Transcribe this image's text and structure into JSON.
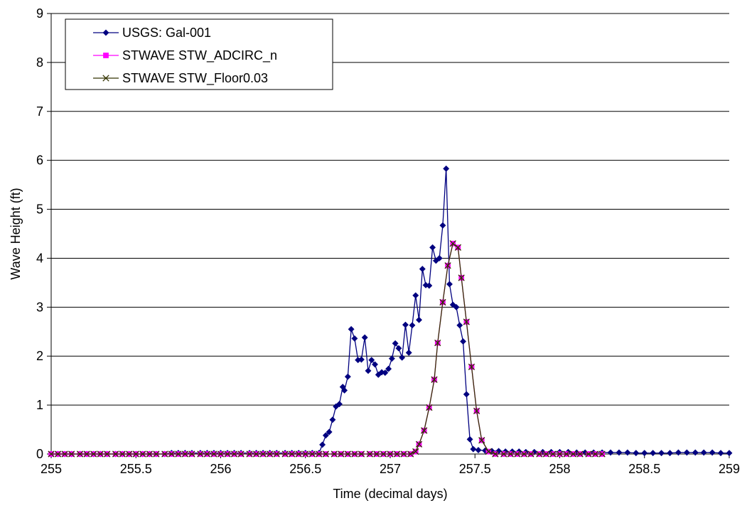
{
  "chart_data": {
    "type": "line",
    "title": "",
    "xlabel": "Time (decimal days)",
    "ylabel": "Wave Height (ft)",
    "xlim": [
      255,
      259
    ],
    "ylim": [
      0,
      9
    ],
    "x_ticks": [
      "255",
      "255.5",
      "256",
      "256.5",
      "257",
      "257.5",
      "258",
      "258.5",
      "259"
    ],
    "y_ticks": [
      "0",
      "1",
      "2",
      "3",
      "4",
      "5",
      "6",
      "7",
      "8",
      "9"
    ],
    "grid": "horizontal major gridlines",
    "legend_position": "top-left",
    "series": [
      {
        "name": "USGS: Gal-001",
        "color": "#000080",
        "marker": "diamond",
        "x": [
          255.0,
          255.04,
          255.08,
          255.12,
          255.17,
          255.21,
          255.25,
          255.29,
          255.33,
          255.38,
          255.42,
          255.46,
          255.5,
          255.54,
          255.58,
          255.62,
          255.67,
          255.71,
          255.75,
          255.79,
          255.83,
          255.88,
          255.92,
          255.96,
          256.0,
          256.04,
          256.08,
          256.12,
          256.17,
          256.21,
          256.25,
          256.29,
          256.33,
          256.38,
          256.42,
          256.46,
          256.5,
          256.54,
          256.58,
          256.6,
          256.62,
          256.64,
          256.66,
          256.68,
          256.7,
          256.72,
          256.73,
          256.75,
          256.77,
          256.79,
          256.81,
          256.83,
          256.85,
          256.87,
          256.89,
          256.91,
          256.93,
          256.95,
          256.97,
          256.99,
          257.01,
          257.03,
          257.05,
          257.07,
          257.09,
          257.11,
          257.13,
          257.15,
          257.17,
          257.19,
          257.21,
          257.23,
          257.25,
          257.27,
          257.29,
          257.31,
          257.33,
          257.35,
          257.37,
          257.39,
          257.41,
          257.43,
          257.45,
          257.47,
          257.49,
          257.52,
          257.56,
          257.6,
          257.64,
          257.68,
          257.72,
          257.76,
          257.8,
          257.85,
          257.9,
          257.95,
          258.0,
          258.05,
          258.1,
          258.15,
          258.2,
          258.25,
          258.3,
          258.35,
          258.4,
          258.45,
          258.5,
          258.55,
          258.6,
          258.65,
          258.7,
          258.75,
          258.8,
          258.85,
          258.9,
          258.95,
          259.0
        ],
        "y": [
          0.0,
          0.0,
          0.0,
          0.0,
          0.0,
          0.0,
          0.0,
          0.0,
          0.0,
          0.0,
          0.0,
          0.0,
          0.0,
          0.0,
          0.0,
          0.0,
          0.0,
          0.02,
          0.02,
          0.02,
          0.02,
          0.02,
          0.02,
          0.02,
          0.02,
          0.02,
          0.02,
          0.02,
          0.02,
          0.02,
          0.02,
          0.02,
          0.02,
          0.02,
          0.02,
          0.02,
          0.02,
          0.02,
          0.02,
          0.19,
          0.38,
          0.45,
          0.7,
          0.97,
          1.02,
          1.37,
          1.3,
          1.58,
          2.55,
          2.36,
          1.92,
          1.93,
          2.38,
          1.7,
          1.92,
          1.83,
          1.62,
          1.67,
          1.66,
          1.74,
          1.95,
          2.26,
          2.16,
          1.97,
          2.64,
          2.07,
          2.63,
          3.24,
          2.74,
          3.78,
          3.45,
          3.44,
          4.22,
          3.95,
          4.0,
          4.67,
          5.83,
          3.47,
          3.05,
          3.0,
          2.63,
          2.3,
          1.22,
          0.3,
          0.1,
          0.08,
          0.07,
          0.06,
          0.06,
          0.05,
          0.05,
          0.05,
          0.04,
          0.04,
          0.04,
          0.04,
          0.04,
          0.04,
          0.03,
          0.03,
          0.03,
          0.03,
          0.03,
          0.03,
          0.03,
          0.02,
          0.02,
          0.02,
          0.02,
          0.02,
          0.03,
          0.03,
          0.03,
          0.03,
          0.03,
          0.02,
          0.02
        ]
      },
      {
        "name": "STWAVE STW_ADCIRC_n",
        "color": "#FF00FF",
        "marker": "square",
        "x": [
          255.0,
          255.04,
          255.08,
          255.12,
          255.17,
          255.21,
          255.25,
          255.29,
          255.33,
          255.38,
          255.42,
          255.46,
          255.5,
          255.54,
          255.58,
          255.62,
          255.67,
          255.71,
          255.75,
          255.79,
          255.83,
          255.88,
          255.92,
          255.96,
          256.0,
          256.04,
          256.08,
          256.12,
          256.17,
          256.21,
          256.25,
          256.29,
          256.33,
          256.38,
          256.42,
          256.46,
          256.5,
          256.54,
          256.58,
          256.62,
          256.67,
          256.71,
          256.75,
          256.79,
          256.83,
          256.88,
          256.92,
          256.96,
          257.0,
          257.04,
          257.08,
          257.12,
          257.15,
          257.17,
          257.2,
          257.23,
          257.26,
          257.28,
          257.31,
          257.34,
          257.37,
          257.4,
          257.42,
          257.45,
          257.48,
          257.51,
          257.54,
          257.58,
          257.62,
          257.67,
          257.71,
          257.75,
          257.79,
          257.83,
          257.88,
          257.92,
          257.96,
          258.0,
          258.04,
          258.08,
          258.12,
          258.17,
          258.21,
          258.25
        ],
        "y": [
          0.0,
          0.0,
          0.0,
          0.0,
          0.0,
          0.0,
          0.0,
          0.0,
          0.0,
          0.0,
          0.0,
          0.0,
          0.0,
          0.0,
          0.0,
          0.0,
          0.0,
          0.0,
          0.0,
          0.0,
          0.0,
          0.0,
          0.0,
          0.0,
          0.0,
          0.0,
          0.0,
          0.0,
          0.0,
          0.0,
          0.0,
          0.0,
          0.0,
          0.0,
          0.0,
          0.0,
          0.0,
          0.0,
          0.0,
          0.0,
          0.0,
          0.0,
          0.0,
          0.0,
          0.0,
          0.0,
          0.0,
          0.0,
          0.0,
          0.0,
          0.0,
          0.0,
          0.05,
          0.2,
          0.48,
          0.95,
          1.52,
          2.27,
          3.1,
          3.85,
          4.3,
          4.22,
          3.6,
          2.7,
          1.78,
          0.88,
          0.28,
          0.05,
          0.0,
          0.0,
          0.0,
          0.0,
          0.0,
          0.0,
          0.0,
          0.0,
          0.0,
          0.0,
          0.0,
          0.0,
          0.0,
          0.0,
          0.0,
          0.0
        ]
      },
      {
        "name": "STWAVE STW_Floor0.03",
        "color": "#333300",
        "marker": "x",
        "x": [
          255.0,
          255.04,
          255.08,
          255.12,
          255.17,
          255.21,
          255.25,
          255.29,
          255.33,
          255.38,
          255.42,
          255.46,
          255.5,
          255.54,
          255.58,
          255.62,
          255.67,
          255.71,
          255.75,
          255.79,
          255.83,
          255.88,
          255.92,
          255.96,
          256.0,
          256.04,
          256.08,
          256.12,
          256.17,
          256.21,
          256.25,
          256.29,
          256.33,
          256.38,
          256.42,
          256.46,
          256.5,
          256.54,
          256.58,
          256.62,
          256.67,
          256.71,
          256.75,
          256.79,
          256.83,
          256.88,
          256.92,
          256.96,
          257.0,
          257.04,
          257.08,
          257.12,
          257.15,
          257.17,
          257.2,
          257.23,
          257.26,
          257.28,
          257.31,
          257.34,
          257.37,
          257.4,
          257.42,
          257.45,
          257.48,
          257.51,
          257.54,
          257.58,
          257.62,
          257.67,
          257.71,
          257.75,
          257.79,
          257.83,
          257.88,
          257.92,
          257.96,
          258.0,
          258.04,
          258.08,
          258.12,
          258.17,
          258.21,
          258.25
        ],
        "y": [
          0.0,
          0.0,
          0.0,
          0.0,
          0.0,
          0.0,
          0.0,
          0.0,
          0.0,
          0.0,
          0.0,
          0.0,
          0.0,
          0.0,
          0.0,
          0.0,
          0.0,
          0.0,
          0.0,
          0.0,
          0.0,
          0.0,
          0.0,
          0.0,
          0.0,
          0.0,
          0.0,
          0.0,
          0.0,
          0.0,
          0.0,
          0.0,
          0.0,
          0.0,
          0.0,
          0.0,
          0.0,
          0.0,
          0.0,
          0.0,
          0.0,
          0.0,
          0.0,
          0.0,
          0.0,
          0.0,
          0.0,
          0.0,
          0.0,
          0.0,
          0.0,
          0.0,
          0.05,
          0.2,
          0.48,
          0.95,
          1.52,
          2.27,
          3.1,
          3.85,
          4.3,
          4.22,
          3.6,
          2.7,
          1.78,
          0.88,
          0.28,
          0.05,
          0.0,
          0.0,
          0.0,
          0.0,
          0.0,
          0.0,
          0.0,
          0.0,
          0.0,
          0.0,
          0.0,
          0.0,
          0.0,
          0.0,
          0.0,
          0.0
        ]
      }
    ]
  }
}
